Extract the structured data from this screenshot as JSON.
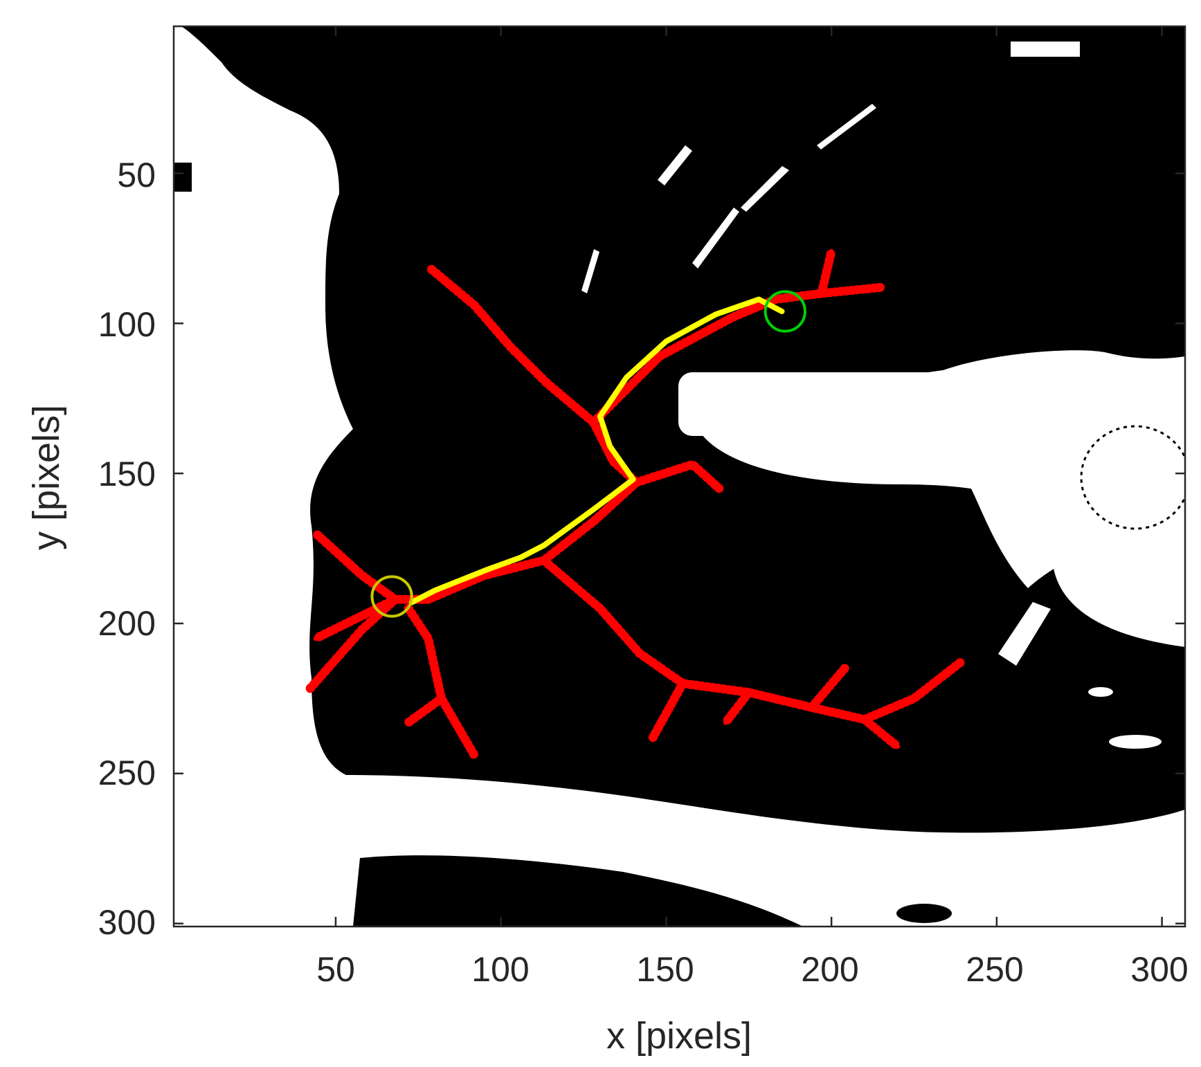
{
  "chart_data": {
    "type": "image-with-traced-paths",
    "xlabel": "x [pixels]",
    "ylabel": "y [pixels]",
    "xlim": [
      1,
      307
    ],
    "ylim": [
      1,
      301
    ],
    "y_reversed": true,
    "xticks": [
      50,
      100,
      150,
      200,
      250,
      300
    ],
    "yticks": [
      50,
      100,
      150,
      200,
      250,
      300
    ],
    "xtick_labels": [
      "50",
      "100",
      "150",
      "200",
      "250",
      "300"
    ],
    "ytick_labels": [
      "50",
      "100",
      "150",
      "200",
      "250",
      "300"
    ],
    "background": "binary mask (black = foreground region, white = background)",
    "series": [
      {
        "name": "",
        "kind": "tree",
        "color": "#ff0000",
        "branches": [
          [
            [
              79,
              82
            ],
            [
              92,
              94
            ],
            [
              103,
              108
            ],
            [
              114,
              120
            ],
            [
              128,
              133
            ]
          ],
          [
            [
              128,
              133
            ],
            [
              134,
              146
            ],
            [
              141,
              153
            ]
          ],
          [
            [
              141,
              153
            ],
            [
              158,
              147
            ],
            [
              166,
              155
            ]
          ],
          [
            [
              141,
              153
            ],
            [
              128,
              166
            ],
            [
              113,
              179
            ],
            [
              95,
              184
            ],
            [
              78,
              192
            ],
            [
              68,
              192
            ]
          ],
          [
            [
              68,
              192
            ],
            [
              58,
              184
            ],
            [
              44,
              170
            ]
          ],
          [
            [
              68,
              192
            ],
            [
              58,
              202
            ],
            [
              42,
              222
            ]
          ],
          [
            [
              68,
              192
            ],
            [
              44,
              205
            ]
          ],
          [
            [
              72,
              195
            ],
            [
              78,
              205
            ],
            [
              82,
              225
            ],
            [
              92,
              244
            ]
          ],
          [
            [
              82,
              225
            ],
            [
              72,
              233
            ]
          ],
          [
            [
              113,
              179
            ],
            [
              130,
              195
            ],
            [
              142,
              210
            ],
            [
              155,
              220
            ],
            [
              175,
              223
            ],
            [
              194,
              228
            ],
            [
              210,
              232
            ],
            [
              220,
              241
            ]
          ],
          [
            [
              175,
              223
            ],
            [
              168,
              233
            ]
          ],
          [
            [
              155,
              220
            ],
            [
              146,
              238
            ]
          ],
          [
            [
              194,
              228
            ],
            [
              204,
              215
            ]
          ],
          [
            [
              210,
              232
            ],
            [
              225,
              225
            ],
            [
              239,
              213
            ]
          ],
          [
            [
              128,
              133
            ],
            [
              148,
              111
            ],
            [
              170,
              98
            ],
            [
              183,
              92
            ],
            [
              197,
              90
            ],
            [
              215,
              88
            ]
          ],
          [
            [
              197,
              90
            ],
            [
              200,
              76
            ]
          ]
        ]
      },
      {
        "name": "",
        "kind": "path",
        "color": "#ffff00",
        "points": [
          [
            185,
            96
          ],
          [
            178,
            92
          ],
          [
            165,
            97
          ],
          [
            150,
            106
          ],
          [
            138,
            118
          ],
          [
            130,
            131
          ],
          [
            133,
            141
          ],
          [
            140,
            152
          ],
          [
            128,
            162
          ],
          [
            113,
            174
          ],
          [
            106,
            178
          ],
          [
            96,
            182
          ],
          [
            80,
            189
          ],
          [
            73,
            193
          ]
        ]
      }
    ],
    "markers": [
      {
        "kind": "circle",
        "color": "#00d000",
        "x": 186,
        "y": 96,
        "r": 6
      },
      {
        "kind": "circle",
        "color": "#c8c800",
        "x": 67,
        "y": 191,
        "r": 6
      }
    ]
  }
}
